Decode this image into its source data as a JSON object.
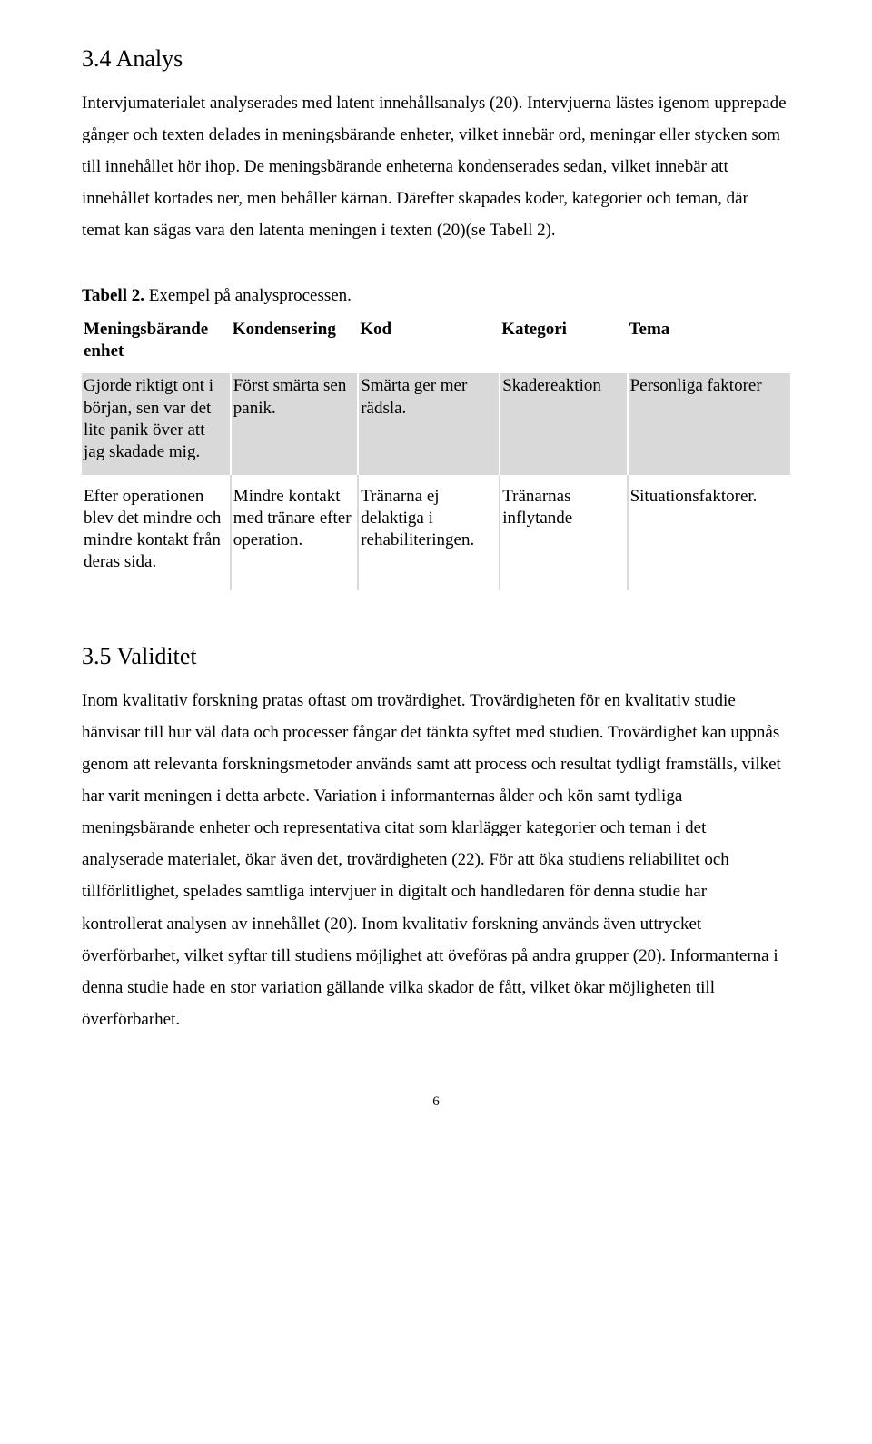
{
  "section1": {
    "heading": "3.4 Analys",
    "para1": "Intervjumaterialet analyserades med latent innehållsanalys (20). Intervjuerna lästes igenom upprepade gånger och texten delades in meningsbärande enheter, vilket innebär ord, meningar eller stycken som till innehållet hör ihop. De meningsbärande enheterna kondenserades sedan, vilket innebär att innehållet kortades ner, men behåller kärnan. Därefter skapades koder, kategorier och teman, där temat kan sägas vara den latenta meningen i texten (20)(se Tabell 2)."
  },
  "table": {
    "caption_strong": "Tabell 2.",
    "caption_rest": " Exempel på analysprocessen.",
    "headers": [
      "Meningsbärande enhet",
      "Kondensering",
      "Kod",
      "Kategori",
      "Tema"
    ],
    "rows": [
      {
        "cells": [
          "Gjorde riktigt ont i början, sen var det lite panik över att jag skadade mig.",
          "Först smärta sen panik.",
          "Smärta ger mer rädsla.",
          "Skadereaktion",
          "Personliga faktorer"
        ]
      },
      {
        "cells": [
          "Efter operationen blev det mindre och mindre kontakt från deras sida.",
          "Mindre kontakt med tränare efter operation.",
          "Tränarna ej delaktiga i rehabiliteringen.",
          "Tränarnas inflytande",
          "Situationsfaktorer."
        ]
      }
    ]
  },
  "section2": {
    "heading": "3.5 Validitet",
    "para1": "Inom kvalitativ forskning pratas oftast om trovärdighet. Trovärdigheten för en kvalitativ studie hänvisar till hur väl data och processer fångar det tänkta syftet med studien. Trovärdighet kan uppnås genom att relevanta forskningsmetoder används samt att process och resultat tydligt framställs, vilket har varit meningen i detta arbete. Variation i informanternas ålder och kön samt tydliga meningsbärande enheter och representativa citat som klarlägger kategorier och teman i det analyserade materialet, ökar även det, trovärdigheten (22). För att öka studiens reliabilitet och tillförlitlighet, spelades samtliga intervjuer in digitalt och handledaren för denna studie har kontrollerat analysen av innehållet (20). Inom kvalitativ forskning används även uttrycket överförbarhet, vilket syftar till studiens möjlighet att öveföras på andra grupper (20). Informanterna i denna studie hade en stor variation gällande vilka skador de fått, vilket ökar möjligheten till överförbarhet."
  },
  "page_number": "6"
}
